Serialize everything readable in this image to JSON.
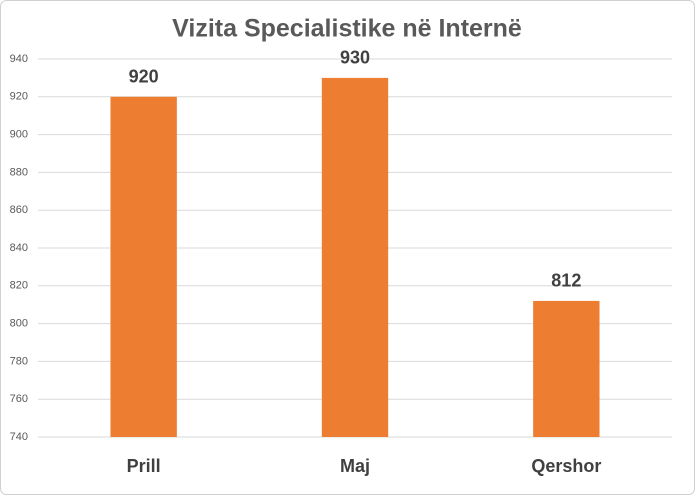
{
  "chart_data": {
    "type": "bar",
    "title": "Vizita Specialistike në Internë",
    "categories": [
      "Prill",
      "Maj",
      "Qershor"
    ],
    "values": [
      920,
      930,
      812
    ],
    "color": "#ed7d31",
    "ylim": [
      740,
      940
    ],
    "yticks": [
      740,
      760,
      780,
      800,
      820,
      840,
      860,
      880,
      900,
      920,
      940
    ],
    "grid": true
  }
}
